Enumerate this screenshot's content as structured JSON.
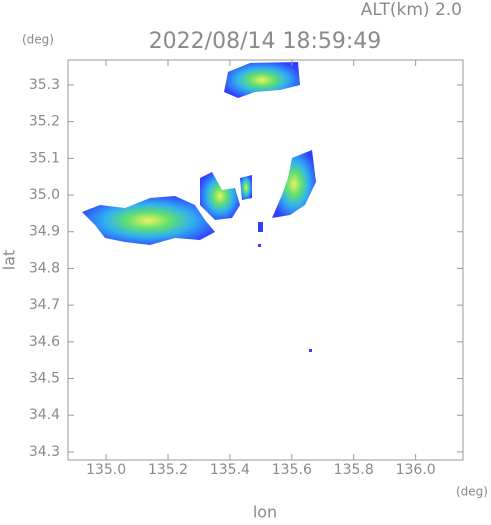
{
  "chart_data": {
    "type": "map",
    "title": "2022/08/14 18:59:49",
    "subtitle": "ALT(km) 2.0",
    "x_label": "lon",
    "x_unit": "(deg)",
    "y_label": "lat",
    "y_unit": "(deg)",
    "xlim": [
      134.877,
      136.153
    ],
    "xticks": [
      {
        "value": 135,
        "label": "135.0"
      },
      135.2,
      135.4,
      135.6,
      135.8,
      {
        "value": 136,
        "label": "136.0"
      }
    ],
    "ylim": [
      34.278,
      35.368
    ],
    "yticks": [
      34.3,
      34.4,
      34.5,
      34.6,
      34.7,
      34.8,
      34.9,
      {
        "value": 35,
        "label": "35.0"
      },
      35.1,
      35.2,
      35.3
    ]
  }
}
